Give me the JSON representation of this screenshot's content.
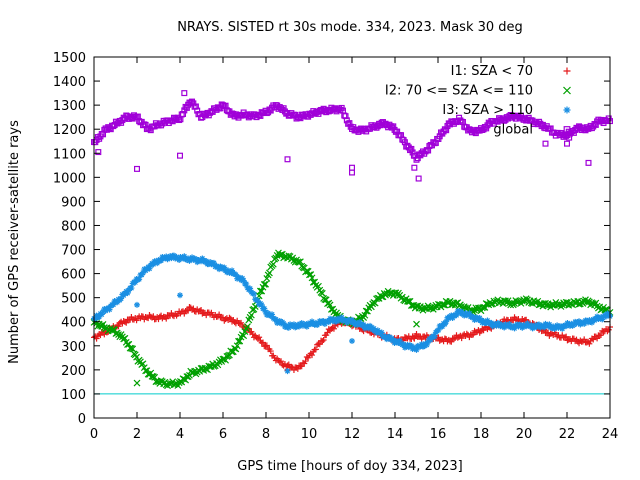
{
  "chart_data": {
    "type": "scatter",
    "title": "NRAYS. SISTED rt 30s mode. 334, 2023. Mask 30 deg",
    "xlabel": "GPS time [hours of doy 334, 2023]",
    "ylabel": "Number of GPS receiver-satellite rays",
    "xlim": [
      0,
      24
    ],
    "ylim": [
      0,
      1500
    ],
    "xticks": [
      0,
      2,
      4,
      6,
      8,
      10,
      12,
      14,
      16,
      18,
      20,
      22,
      24
    ],
    "yticks": [
      0,
      100,
      200,
      300,
      400,
      500,
      600,
      700,
      800,
      900,
      1000,
      1100,
      1200,
      1300,
      1400,
      1500
    ],
    "grid": false,
    "legend_position": "top-right",
    "threshold_line": {
      "y": 100,
      "color": "#00cccc"
    },
    "series": [
      {
        "name": "I1: SZA < 70",
        "color": "#e41a1c",
        "marker": "+",
        "x": [
          0,
          0.5,
          1,
          1.5,
          2,
          2.5,
          3,
          3.5,
          4,
          4.5,
          5,
          5.5,
          6,
          6.5,
          7,
          7.5,
          8,
          8.5,
          9,
          9.5,
          10,
          10.5,
          11,
          11.5,
          12,
          12.5,
          13,
          13.5,
          14,
          14.5,
          15,
          15.5,
          16,
          16.5,
          17,
          17.5,
          18,
          18.5,
          19,
          19.5,
          20,
          20.5,
          21,
          21.5,
          22,
          22.5,
          23,
          23.5,
          24
        ],
        "y": [
          335,
          355,
          380,
          405,
          415,
          420,
          415,
          425,
          435,
          455,
          440,
          430,
          415,
          405,
          380,
          340,
          300,
          240,
          215,
          205,
          255,
          310,
          370,
          400,
          390,
          370,
          355,
          340,
          325,
          330,
          340,
          335,
          330,
          320,
          340,
          345,
          365,
          380,
          400,
          410,
          405,
          385,
          355,
          345,
          330,
          320,
          315,
          345,
          375
        ],
        "outliers": [
          [
            9.0,
            200
          ],
          [
            14.9,
            330
          ]
        ]
      },
      {
        "name": "I2: 70 <= SZA <= 110",
        "color": "#00a000",
        "marker": "x",
        "x": [
          0,
          0.5,
          1,
          1.5,
          2,
          2.5,
          3,
          3.5,
          4,
          4.5,
          5,
          5.5,
          6,
          6.5,
          7,
          7.5,
          8,
          8.5,
          9,
          9.5,
          10,
          10.5,
          11,
          11.5,
          12,
          12.5,
          13,
          13.5,
          14,
          14.5,
          15,
          15.5,
          16,
          16.5,
          17,
          17.5,
          18,
          18.5,
          19,
          19.5,
          20,
          20.5,
          21,
          21.5,
          22,
          22.5,
          23,
          23.5,
          24
        ],
        "y": [
          400,
          375,
          360,
          320,
          250,
          190,
          150,
          140,
          145,
          185,
          200,
          215,
          240,
          280,
          355,
          470,
          570,
          680,
          670,
          650,
          600,
          530,
          460,
          410,
          395,
          420,
          480,
          515,
          520,
          490,
          460,
          455,
          465,
          480,
          470,
          445,
          455,
          480,
          485,
          475,
          490,
          480,
          470,
          470,
          475,
          478,
          485,
          460,
          440
        ],
        "outliers": [
          [
            2.0,
            145
          ],
          [
            15.0,
            390
          ]
        ]
      },
      {
        "name": "I3: SZA > 110",
        "color": "#1a8fe3",
        "marker": "*",
        "x": [
          0,
          0.5,
          1,
          1.5,
          2,
          2.5,
          3,
          3.5,
          4,
          4.5,
          5,
          5.5,
          6,
          6.5,
          7,
          7.5,
          8,
          8.5,
          9,
          9.5,
          10,
          10.5,
          11,
          11.5,
          12,
          12.5,
          13,
          13.5,
          14,
          14.5,
          15,
          15.5,
          16,
          16.5,
          17,
          17.5,
          18,
          18.5,
          19,
          19.5,
          20,
          20.5,
          21,
          21.5,
          22,
          22.5,
          23,
          23.5,
          24
        ],
        "y": [
          410,
          445,
          480,
          520,
          575,
          625,
          655,
          670,
          665,
          660,
          655,
          640,
          620,
          600,
          565,
          500,
          440,
          405,
          380,
          385,
          390,
          395,
          405,
          410,
          400,
          385,
          370,
          340,
          320,
          300,
          290,
          310,
          365,
          415,
          440,
          425,
          405,
          390,
          385,
          380,
          385,
          380,
          385,
          375,
          385,
          395,
          400,
          415,
          430
        ],
        "outliers": [
          [
            2.0,
            470
          ],
          [
            4.0,
            510
          ],
          [
            9.0,
            195
          ],
          [
            12.0,
            320
          ]
        ]
      },
      {
        "name": "global",
        "color": "#a000d8",
        "marker": "square",
        "x": [
          0,
          0.5,
          1,
          1.5,
          2,
          2.5,
          3,
          3.5,
          4,
          4.5,
          5,
          5.5,
          6,
          6.5,
          7,
          7.5,
          8,
          8.5,
          9,
          9.5,
          10,
          10.5,
          11,
          11.5,
          12,
          12.5,
          13,
          13.5,
          14,
          14.5,
          15,
          15.5,
          16,
          16.5,
          17,
          17.5,
          18,
          18.5,
          19,
          19.5,
          20,
          20.5,
          21,
          21.5,
          22,
          22.5,
          23,
          23.5,
          24
        ],
        "y": [
          1140,
          1195,
          1220,
          1250,
          1250,
          1200,
          1220,
          1235,
          1245,
          1320,
          1250,
          1275,
          1300,
          1255,
          1260,
          1255,
          1270,
          1300,
          1265,
          1250,
          1260,
          1275,
          1280,
          1285,
          1200,
          1195,
          1210,
          1225,
          1200,
          1140,
          1080,
          1115,
          1160,
          1220,
          1240,
          1190,
          1195,
          1230,
          1240,
          1255,
          1245,
          1230,
          1210,
          1180,
          1175,
          1205,
          1200,
          1235,
          1235
        ],
        "outliers": [
          [
            0.2,
            1105
          ],
          [
            2.0,
            1035
          ],
          [
            4.0,
            1090
          ],
          [
            4.2,
            1350
          ],
          [
            9.0,
            1075
          ],
          [
            12.0,
            1020
          ],
          [
            12.0,
            1040
          ],
          [
            14.9,
            1040
          ],
          [
            15.1,
            995
          ],
          [
            21.0,
            1140
          ],
          [
            22.0,
            1140
          ],
          [
            22.1,
            1165
          ],
          [
            23.0,
            1060
          ]
        ]
      }
    ]
  }
}
